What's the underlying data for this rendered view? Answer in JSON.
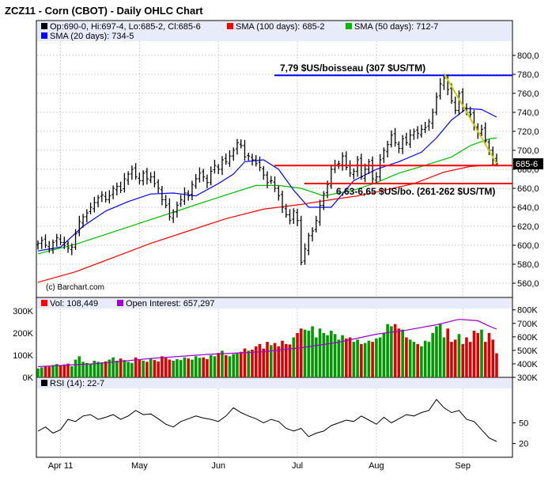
{
  "chart_data": [
    {
      "type": "ohlc",
      "panel": "price",
      "title": "ZCZ11 - Corn (CBOT) - Daily OHLC Chart",
      "ylim": [
        545,
        815
      ],
      "y_ticks": [
        "800,0",
        "780,0",
        "760,0",
        "740,0",
        "720,0",
        "700,0",
        "680,0",
        "660,0",
        "640,0",
        "620,0",
        "600,0",
        "580,0",
        "560,0"
      ],
      "y_tick_values": [
        800,
        780,
        760,
        740,
        720,
        700,
        680,
        660,
        640,
        620,
        600,
        580,
        560
      ],
      "x_ticks": [
        "Apr 11",
        "May",
        "Jun",
        "Jul",
        "Aug",
        "Sep"
      ],
      "x_tick_index": [
        6,
        27,
        48,
        69,
        90,
        113
      ],
      "last_label": "685-6",
      "last_value": 685.75,
      "watermark": "(c) Barchart.com",
      "legend": [
        {
          "text": "Op:690-0, Hi:697-4, Lo:685-2, Cl:685-6",
          "color": "#000000"
        },
        {
          "text": "SMA (100 days): 685-2",
          "color": "#ff0000"
        },
        {
          "text": "SMA (50 days): 712-7",
          "color": "#00bb00"
        },
        {
          "text": "SMA (20 days): 734-5",
          "color": "#0000ff"
        }
      ],
      "close_series": [
        602,
        605,
        600,
        596,
        603,
        608,
        603,
        600,
        597,
        598,
        612,
        625,
        630,
        634,
        640,
        645,
        650,
        653,
        648,
        652,
        660,
        662,
        658,
        670,
        675,
        680,
        672,
        668,
        676,
        670,
        672,
        665,
        660,
        648,
        642,
        630,
        635,
        642,
        648,
        655,
        652,
        664,
        670,
        676,
        672,
        666,
        678,
        684,
        680,
        690,
        688,
        694,
        700,
        708,
        705,
        693,
        694,
        690,
        686,
        682,
        674,
        666,
        668,
        660,
        652,
        640,
        632,
        626,
        636,
        626,
        582,
        596,
        610,
        615,
        626,
        642,
        654,
        664,
        680,
        684,
        686,
        694,
        682,
        676,
        678,
        690,
        672,
        680,
        688,
        670,
        672,
        690,
        700,
        706,
        716,
        708,
        702,
        712,
        708,
        716,
        720,
        718,
        722,
        724,
        730,
        740,
        756,
        770,
        776,
        764,
        752,
        742,
        760,
        746,
        740,
        738,
        726,
        718,
        722,
        710,
        700,
        690,
        686
      ],
      "sma_lines": [
        {
          "name": "SMA (100 days)",
          "color": "#ff0000",
          "points": [
            [
              0,
              561
            ],
            [
              10,
              572
            ],
            [
              20,
              587
            ],
            [
              30,
              602
            ],
            [
              40,
              615
            ],
            [
              50,
              628
            ],
            [
              60,
              638
            ],
            [
              70,
              643
            ],
            [
              78,
              648
            ],
            [
              85,
              652
            ],
            [
              90,
              656
            ],
            [
              100,
              665
            ],
            [
              108,
              677
            ],
            [
              115,
              683
            ],
            [
              119,
              684
            ],
            [
              122,
              685
            ]
          ]
        },
        {
          "name": "SMA (50 days)",
          "color": "#00bb00",
          "points": [
            [
              0,
              591
            ],
            [
              10,
              601
            ],
            [
              20,
              614
            ],
            [
              30,
              627
            ],
            [
              40,
              640
            ],
            [
              50,
              653
            ],
            [
              58,
              663
            ],
            [
              64,
              663
            ],
            [
              70,
              660
            ],
            [
              76,
              652
            ],
            [
              84,
              658
            ],
            [
              90,
              666
            ],
            [
              96,
              676
            ],
            [
              102,
              683
            ],
            [
              110,
              693
            ],
            [
              115,
              705
            ],
            [
              120,
              712
            ],
            [
              122,
              713
            ]
          ]
        },
        {
          "name": "SMA (20 days)",
          "color": "#0000ff",
          "points": [
            [
              0,
              594
            ],
            [
              6,
              598
            ],
            [
              12,
              620
            ],
            [
              18,
              636
            ],
            [
              24,
              646
            ],
            [
              30,
              654
            ],
            [
              36,
              655
            ],
            [
              42,
              652
            ],
            [
              48,
              665
            ],
            [
              52,
              675
            ],
            [
              55,
              688
            ],
            [
              60,
              690
            ],
            [
              64,
              680
            ],
            [
              68,
              658
            ],
            [
              72,
              640
            ],
            [
              78,
              640
            ],
            [
              84,
              668
            ],
            [
              90,
              680
            ],
            [
              96,
              688
            ],
            [
              102,
              698
            ],
            [
              106,
              713
            ],
            [
              110,
              732
            ],
            [
              114,
              744
            ],
            [
              118,
              743
            ],
            [
              122,
              735
            ]
          ]
        }
      ],
      "annotations": [
        {
          "text": "7,79 $US/boisseau (307 $US/TM)",
          "value": 779,
          "color": "#0000ff"
        },
        {
          "text": "6,63-6,65 $US/bo. (261-262 $US/TM)",
          "value": 665,
          "color": "#ff0000"
        }
      ],
      "support_line": {
        "value": 684,
        "color": "#ff0000"
      },
      "trend_line": {
        "from": [
          108,
          781
        ],
        "to": [
          122,
          686
        ],
        "color": "#cccc00"
      }
    },
    {
      "type": "bar",
      "panel": "volume",
      "legend": [
        {
          "text": "Vol: 108,449",
          "color": "#ff0000"
        },
        {
          "text": "Open Interest: 657,297",
          "color": "#9900cc"
        }
      ],
      "y_ticks_left": [
        "300K",
        "200K",
        "100K",
        "0K"
      ],
      "y_ticks_left_values": [
        300000,
        200000,
        100000,
        0
      ],
      "y_ticks_right": [
        "800K",
        "700K",
        "600K",
        "500K",
        "400K",
        "300K"
      ],
      "y_ticks_right_values": [
        800000,
        700000,
        600000,
        500000,
        400000,
        300000
      ],
      "volume": [
        40000,
        45000,
        50000,
        48000,
        55000,
        60000,
        52000,
        58000,
        62000,
        50000,
        80000,
        95000,
        70000,
        65000,
        60000,
        75000,
        70000,
        68000,
        72000,
        80000,
        90000,
        75000,
        85000,
        78000,
        70000,
        65000,
        90000,
        80000,
        75000,
        70000,
        85000,
        78000,
        72000,
        95000,
        88000,
        80000,
        75000,
        82000,
        78000,
        90000,
        85000,
        80000,
        95000,
        88000,
        90000,
        82000,
        100000,
        95000,
        110000,
        120000,
        100000,
        95000,
        105000,
        110000,
        115000,
        130000,
        120000,
        125000,
        140000,
        150000,
        130000,
        160000,
        145000,
        155000,
        140000,
        165000,
        150000,
        148000,
        180000,
        200000,
        220000,
        215000,
        210000,
        230000,
        180000,
        220000,
        200000,
        190000,
        210000,
        195000,
        170000,
        190000,
        175000,
        180000,
        160000,
        170000,
        150000,
        155000,
        165000,
        160000,
        175000,
        180000,
        200000,
        240000,
        230000,
        240000,
        220000,
        215000,
        180000,
        170000,
        160000,
        150000,
        140000,
        165000,
        160000,
        200000,
        230000,
        240000,
        180000,
        220000,
        160000,
        170000,
        195000,
        150000,
        180000,
        160000,
        210000,
        200000,
        215000,
        160000,
        200000,
        170000,
        108449
      ],
      "open_interest_points": [
        [
          0,
          380000
        ],
        [
          15,
          400000
        ],
        [
          30,
          440000
        ],
        [
          45,
          470000
        ],
        [
          60,
          490000
        ],
        [
          70,
          520000
        ],
        [
          80,
          560000
        ],
        [
          90,
          620000
        ],
        [
          98,
          650000
        ],
        [
          106,
          690000
        ],
        [
          112,
          730000
        ],
        [
          117,
          720000
        ],
        [
          120,
          680000
        ],
        [
          122,
          657297
        ]
      ]
    },
    {
      "type": "line",
      "panel": "rsi",
      "legend": [
        {
          "text": "RSI (14): 22-7",
          "color": "#000000"
        }
      ],
      "y_ticks": [
        "50",
        "20"
      ],
      "y_tick_values": [
        50,
        20
      ],
      "ylim": [
        0,
        100
      ],
      "rsi_points": [
        [
          0,
          38
        ],
        [
          2,
          44
        ],
        [
          4,
          35
        ],
        [
          6,
          40
        ],
        [
          8,
          55
        ],
        [
          10,
          52
        ],
        [
          12,
          60
        ],
        [
          14,
          62
        ],
        [
          16,
          55
        ],
        [
          18,
          58
        ],
        [
          20,
          62
        ],
        [
          22,
          55
        ],
        [
          24,
          60
        ],
        [
          26,
          68
        ],
        [
          28,
          62
        ],
        [
          30,
          63
        ],
        [
          32,
          56
        ],
        [
          34,
          48
        ],
        [
          36,
          44
        ],
        [
          38,
          52
        ],
        [
          40,
          56
        ],
        [
          42,
          60
        ],
        [
          44,
          57
        ],
        [
          46,
          55
        ],
        [
          48,
          52
        ],
        [
          50,
          60
        ],
        [
          52,
          72
        ],
        [
          54,
          65
        ],
        [
          56,
          60
        ],
        [
          58,
          56
        ],
        [
          60,
          50
        ],
        [
          62,
          55
        ],
        [
          64,
          52
        ],
        [
          66,
          42
        ],
        [
          68,
          38
        ],
        [
          70,
          42
        ],
        [
          72,
          30
        ],
        [
          74,
          35
        ],
        [
          76,
          38
        ],
        [
          78,
          46
        ],
        [
          80,
          50
        ],
        [
          82,
          54
        ],
        [
          84,
          52
        ],
        [
          86,
          60
        ],
        [
          88,
          54
        ],
        [
          90,
          48
        ],
        [
          92,
          58
        ],
        [
          94,
          50
        ],
        [
          96,
          56
        ],
        [
          98,
          62
        ],
        [
          100,
          60
        ],
        [
          102,
          65
        ],
        [
          104,
          68
        ],
        [
          106,
          84
        ],
        [
          108,
          72
        ],
        [
          110,
          65
        ],
        [
          112,
          68
        ],
        [
          114,
          55
        ],
        [
          116,
          52
        ],
        [
          118,
          40
        ],
        [
          120,
          28
        ],
        [
          122,
          23
        ]
      ]
    }
  ]
}
